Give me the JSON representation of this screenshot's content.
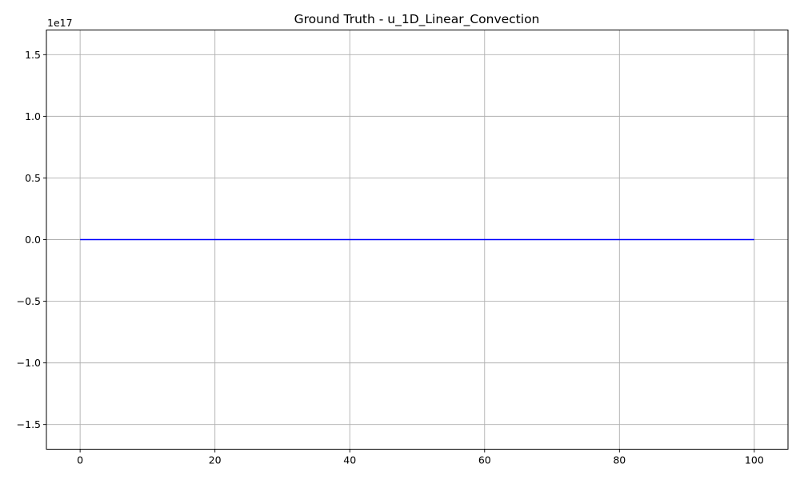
{
  "chart_data": {
    "type": "line",
    "title": "Ground Truth - u_1D_Linear_Convection",
    "xlabel": "",
    "ylabel": "",
    "xlim": [
      -5,
      105
    ],
    "ylim": [
      -1.7,
      1.7
    ],
    "y_offset_label": "1e17",
    "grid": true,
    "xticks": [
      0,
      20,
      40,
      60,
      80,
      100
    ],
    "xtick_labels": [
      "0",
      "20",
      "40",
      "60",
      "80",
      "100"
    ],
    "yticks": [
      1.5,
      1.0,
      0.5,
      0.0,
      -0.5,
      -1.0,
      -1.5
    ],
    "ytick_labels": [
      "1.5",
      "1.0",
      "0.5",
      "0.0",
      "−0.5",
      "−1.0",
      "−1.5"
    ],
    "series": [
      {
        "color": "#0000ff",
        "x": [
          0,
          100
        ],
        "y": [
          0,
          0
        ]
      }
    ]
  }
}
